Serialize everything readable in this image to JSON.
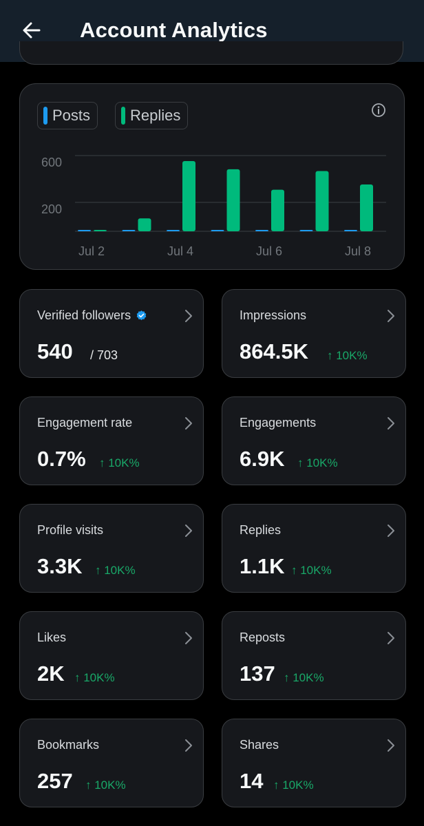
{
  "header": {
    "title": "Account Analytics"
  },
  "legend": {
    "posts_label": "Posts",
    "replies_label": "Replies"
  },
  "colors": {
    "posts": "#1d9bf0",
    "replies": "#00ba7c",
    "change": "#19a868",
    "header_bg": "#15202b",
    "card_bg": "#16181c"
  },
  "chart_data": {
    "type": "bar",
    "categories": [
      "Jul 2",
      "Jul 3",
      "Jul 4",
      "Jul 5",
      "Jul 6",
      "Jul 7",
      "Jul 8"
    ],
    "x_tick_labels": [
      "Jul 2",
      "Jul 4",
      "Jul 6",
      "Jul 8"
    ],
    "y_tick_labels": [
      "600",
      "200"
    ],
    "y_ticks": [
      600,
      200
    ],
    "ylim": [
      0,
      650
    ],
    "series": [
      {
        "name": "Posts",
        "values": [
          0,
          3,
          5,
          5,
          5,
          5,
          5
        ]
      },
      {
        "name": "Replies",
        "values": [
          3,
          110,
          600,
          530,
          355,
          515,
          400
        ]
      }
    ]
  },
  "stats": [
    {
      "label": "Verified followers",
      "value": "540",
      "total": "/ 703",
      "verified": true
    },
    {
      "label": "Impressions",
      "value": "864.5K",
      "change": "↑ 10K%"
    },
    {
      "label": "Engagement rate",
      "value": "0.7%",
      "change": "↑ 10K%"
    },
    {
      "label": "Engagements",
      "value": "6.9K",
      "change": "↑ 10K%"
    },
    {
      "label": "Profile visits",
      "value": "3.3K",
      "change": "↑ 10K%"
    },
    {
      "label": "Replies",
      "value": "1.1K",
      "change": "↑ 10K%"
    },
    {
      "label": "Likes",
      "value": "2K",
      "change": "↑ 10K%"
    },
    {
      "label": "Reposts",
      "value": "137",
      "change": "↑ 10K%"
    },
    {
      "label": "Bookmarks",
      "value": "257",
      "change": "↑ 10K%"
    },
    {
      "label": "Shares",
      "value": "14",
      "change": "↑ 10K%"
    }
  ]
}
